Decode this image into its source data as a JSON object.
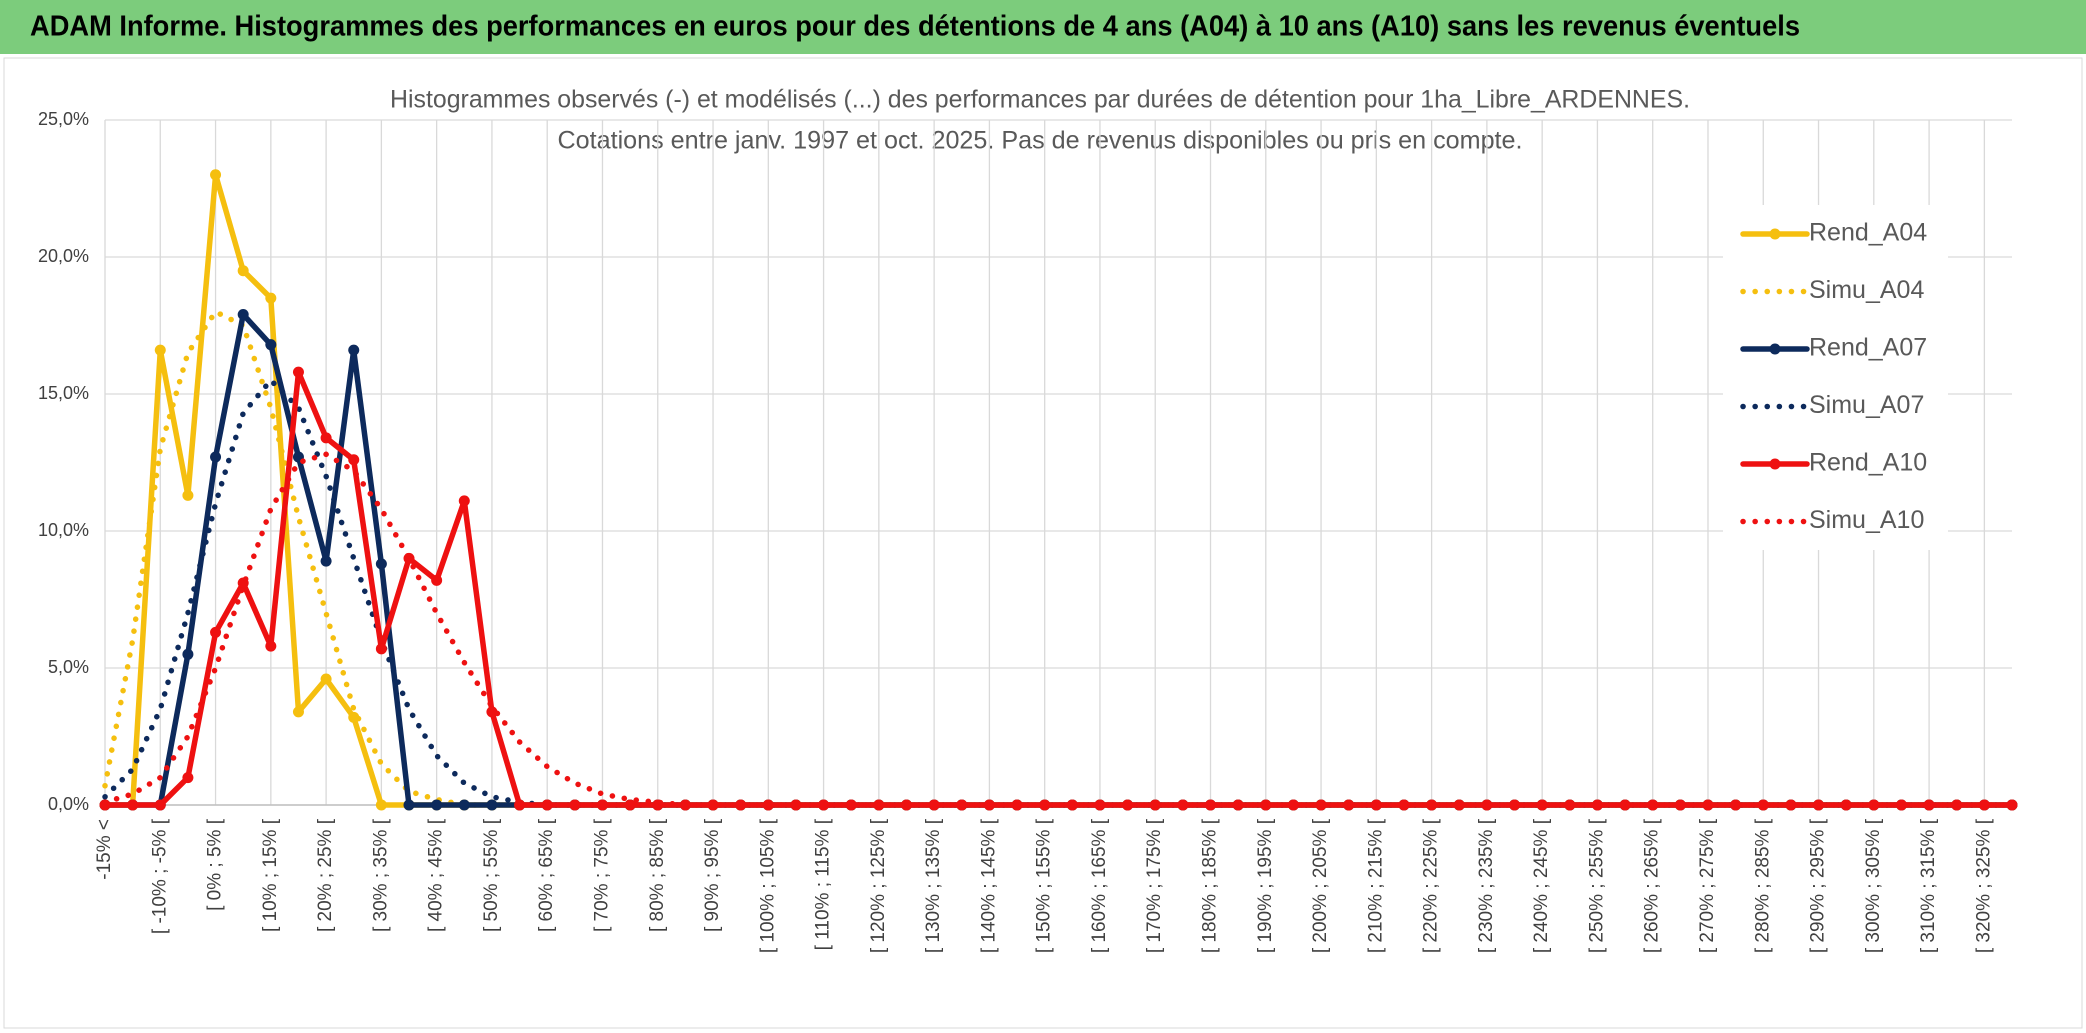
{
  "chart_data": {
    "type": "line",
    "title": "ADAM Informe. Histogrammes des performances en euros pour des détentions de 4 ans (A04) à 10 ans (A10) sans les revenus éventuels",
    "subtitle": [
      "Histogrammes observés (-) et modélisés (...) des performances par durées de détention pour 1ha_Libre_ARDENNES.",
      "Cotations entre janv. 1997 et oct. 2025. Pas de revenus disponibles ou pris en compte."
    ],
    "categories": [
      "-15% <",
      null,
      "[ -10% ; -5% [",
      null,
      "[ 0% ; 5% [",
      null,
      "[ 10% ; 15% [",
      null,
      "[ 20% ; 25% [",
      null,
      "[ 30% ; 35% [",
      null,
      "[ 40% ; 45% [",
      null,
      "[ 50% ; 55% [",
      null,
      "[ 60% ; 65% [",
      null,
      "[ 70% ; 75% [",
      null,
      "[ 80% ; 85% [",
      null,
      "[ 90% ; 95% [",
      null,
      "[ 100% ; 105% [",
      null,
      "[ 110% ; 115% [",
      null,
      "[ 120% ; 125% [",
      null,
      "[ 130% ; 135% [",
      null,
      "[ 140% ; 145% [",
      null,
      "[ 150% ; 155% [",
      null,
      "[ 160% ; 165% [",
      null,
      "[ 170% ; 175% [",
      null,
      "[ 180% ; 185% [",
      null,
      "[ 190% ; 195% [",
      null,
      "[ 200% ; 205% [",
      null,
      "[ 210% ; 215% [",
      null,
      "[ 220% ; 225% [",
      null,
      "[ 230% ; 235% [",
      null,
      "[ 240% ; 245% [",
      null,
      "[ 250% ; 255% [",
      null,
      "[ 260% ; 265% [",
      null,
      "[ 270% ; 275% [",
      null,
      "[ 280% ; 285% [",
      null,
      "[ 290% ; 295% [",
      null,
      "[ 300% ; 305% [",
      null,
      "[ 310% ; 315% [",
      null,
      "[ 320% ; 325% [",
      null
    ],
    "series": [
      {
        "name": "Rend_A04",
        "color": "#f5bf0f",
        "style": "solid",
        "marker": true,
        "values": [
          0,
          0,
          16.6,
          11.3,
          23.0,
          19.5,
          18.5,
          3.4,
          4.6,
          3.2,
          0,
          0,
          0,
          0,
          0,
          0,
          0,
          0,
          0,
          0,
          0,
          0,
          0,
          0,
          0,
          0,
          0,
          0,
          0,
          0,
          0,
          0,
          0,
          0,
          0,
          0,
          0,
          0,
          0,
          0,
          0,
          0,
          0,
          0,
          0,
          0,
          0,
          0,
          0,
          0,
          0,
          0,
          0,
          0,
          0,
          0,
          0,
          0,
          0,
          0,
          0,
          0,
          0,
          0,
          0,
          0,
          0,
          0,
          0,
          0
        ]
      },
      {
        "name": "Simu_A04",
        "color": "#f5bf0f",
        "style": "dotted",
        "marker": false,
        "values": [
          0.7,
          6,
          13,
          16.5,
          18,
          17.5,
          14.5,
          10.5,
          7,
          3.5,
          1.5,
          0.5,
          0.2,
          0,
          0,
          0,
          0,
          0,
          0,
          0,
          0,
          0,
          0,
          0,
          0,
          0,
          0,
          0,
          0,
          0,
          0,
          0,
          0,
          0,
          0,
          0,
          0,
          0,
          0,
          0,
          0,
          0,
          0,
          0,
          0,
          0,
          0,
          0,
          0,
          0,
          0,
          0,
          0,
          0,
          0,
          0,
          0,
          0,
          0,
          0,
          0,
          0,
          0,
          0,
          0,
          0,
          0,
          0,
          0,
          0
        ]
      },
      {
        "name": "Rend_A07",
        "color": "#0d2a5c",
        "style": "solid",
        "marker": true,
        "values": [
          0,
          0,
          0,
          5.5,
          12.7,
          17.9,
          16.8,
          12.7,
          8.9,
          16.6,
          8.8,
          0,
          0,
          0,
          0,
          0,
          0,
          0,
          0,
          0,
          0,
          0,
          0,
          0,
          0,
          0,
          0,
          0,
          0,
          0,
          0,
          0,
          0,
          0,
          0,
          0,
          0,
          0,
          0,
          0,
          0,
          0,
          0,
          0,
          0,
          0,
          0,
          0,
          0,
          0,
          0,
          0,
          0,
          0,
          0,
          0,
          0,
          0,
          0,
          0,
          0,
          0,
          0,
          0,
          0,
          0,
          0,
          0,
          0,
          0
        ]
      },
      {
        "name": "Simu_A07",
        "color": "#0d2a5c",
        "style": "dotted",
        "marker": false,
        "values": [
          0.3,
          1.3,
          3.5,
          7,
          11,
          14.3,
          15.5,
          14.5,
          12,
          9,
          6,
          3.5,
          1.8,
          0.8,
          0.3,
          0.1,
          0,
          0,
          0,
          0,
          0,
          0,
          0,
          0,
          0,
          0,
          0,
          0,
          0,
          0,
          0,
          0,
          0,
          0,
          0,
          0,
          0,
          0,
          0,
          0,
          0,
          0,
          0,
          0,
          0,
          0,
          0,
          0,
          0,
          0,
          0,
          0,
          0,
          0,
          0,
          0,
          0,
          0,
          0,
          0,
          0,
          0,
          0,
          0,
          0,
          0,
          0,
          0,
          0,
          0
        ]
      },
      {
        "name": "Rend_A10",
        "color": "#ee1111",
        "style": "solid",
        "marker": true,
        "values": [
          0,
          0,
          0,
          1.0,
          6.3,
          8.1,
          5.8,
          15.8,
          13.4,
          12.6,
          5.7,
          9.0,
          8.2,
          11.1,
          3.4,
          0,
          0,
          0,
          0,
          0,
          0,
          0,
          0,
          0,
          0,
          0,
          0,
          0,
          0,
          0,
          0,
          0,
          0,
          0,
          0,
          0,
          0,
          0,
          0,
          0,
          0,
          0,
          0,
          0,
          0,
          0,
          0,
          0,
          0,
          0,
          0,
          0,
          0,
          0,
          0,
          0,
          0,
          0,
          0,
          0,
          0,
          0,
          0,
          0,
          0,
          0,
          0,
          0,
          0,
          0
        ]
      },
      {
        "name": "Simu_A10",
        "color": "#ee1111",
        "style": "dotted",
        "marker": false,
        "values": [
          0.1,
          0.4,
          1,
          2.5,
          5,
          8,
          10.8,
          12.5,
          12.8,
          12.2,
          10.8,
          9,
          7,
          5.2,
          3.6,
          2.3,
          1.4,
          0.8,
          0.4,
          0.2,
          0.1,
          0,
          0,
          0,
          0,
          0,
          0,
          0,
          0,
          0,
          0,
          0,
          0,
          0,
          0,
          0,
          0,
          0,
          0,
          0,
          0,
          0,
          0,
          0,
          0,
          0,
          0,
          0,
          0,
          0,
          0,
          0,
          0,
          0,
          0,
          0,
          0,
          0,
          0,
          0,
          0,
          0,
          0,
          0,
          0,
          0,
          0,
          0,
          0,
          0
        ]
      }
    ],
    "ylim": [
      0,
      25
    ],
    "yticks": [
      {
        "value": 0,
        "label": "0,0%"
      },
      {
        "value": 5,
        "label": "5,0%"
      },
      {
        "value": 10,
        "label": "10,0%"
      },
      {
        "value": 15,
        "label": "15,0%"
      },
      {
        "value": 20,
        "label": "20,0%"
      },
      {
        "value": 25,
        "label": "25,0%"
      }
    ],
    "grid": true,
    "legend": "right"
  }
}
